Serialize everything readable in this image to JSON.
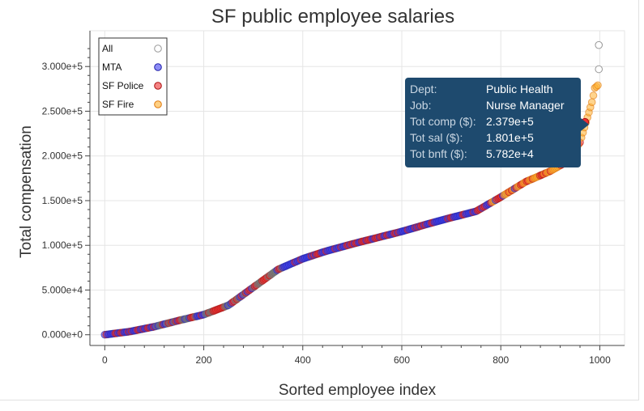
{
  "chart_data": {
    "type": "scatter",
    "title": "SF public employee salaries",
    "xlabel": "Sorted employee index",
    "ylabel": "Total compensation",
    "xlim": [
      -30,
      1050
    ],
    "ylim": [
      -12000,
      340000
    ],
    "x_ticks": [
      0,
      200,
      400,
      600,
      800,
      1000
    ],
    "x_tick_labels": [
      "0",
      "200",
      "400",
      "600",
      "800",
      "1000"
    ],
    "y_ticks": [
      0,
      50000,
      100000,
      150000,
      200000,
      250000,
      300000
    ],
    "y_tick_labels": [
      "0.000e+0",
      "5.000e+4",
      "1.000e+5",
      "1.500e+5",
      "2.000e+5",
      "2.500e+5",
      "3.000e+5"
    ],
    "grid": true,
    "legend_position": "top-left",
    "curve": [
      [
        0,
        0
      ],
      [
        50,
        3500
      ],
      [
        100,
        9000
      ],
      [
        150,
        16000
      ],
      [
        200,
        22500
      ],
      [
        250,
        33000
      ],
      [
        300,
        53000
      ],
      [
        350,
        73000
      ],
      [
        400,
        85000
      ],
      [
        450,
        94000
      ],
      [
        500,
        101500
      ],
      [
        550,
        108500
      ],
      [
        600,
        115500
      ],
      [
        650,
        123500
      ],
      [
        700,
        131000
      ],
      [
        750,
        138000
      ],
      [
        800,
        154000
      ],
      [
        850,
        171000
      ],
      [
        900,
        183000
      ],
      [
        930,
        192500
      ],
      [
        960,
        215000
      ],
      [
        975,
        243000
      ],
      [
        985,
        262000
      ],
      [
        990,
        276000
      ],
      [
        998,
        280000
      ]
    ],
    "series": [
      {
        "name": "All",
        "color": "#ffffff",
        "stroke": "#999999",
        "points": [
          [
            998,
            324000
          ],
          [
            998,
            297000
          ]
        ]
      },
      {
        "name": "MTA",
        "color": "#4040ee",
        "stroke": "#2020aa",
        "ranges": [
          [
            0,
            800
          ]
        ]
      },
      {
        "name": "SF Police",
        "color": "#ee3030",
        "stroke": "#aa1010",
        "ranges": [
          [
            0,
            960
          ]
        ]
      },
      {
        "name": "SF Fire",
        "color": "#ffb030",
        "stroke": "#e07a10",
        "ranges": [
          [
            830,
            998
          ]
        ]
      }
    ]
  },
  "tooltip": {
    "rows": [
      {
        "key": "Dept:",
        "value": "Public Health"
      },
      {
        "key": "Job:",
        "value": "Nurse Manager"
      },
      {
        "key": "Tot comp ($):",
        "value": "2.379e+5"
      },
      {
        "key": "Tot sal ($):",
        "value": "1.801e+5"
      },
      {
        "key": "Tot bnft ($):",
        "value": "5.782e+4"
      }
    ]
  },
  "hover_point": {
    "x": 970,
    "y": 237900
  }
}
